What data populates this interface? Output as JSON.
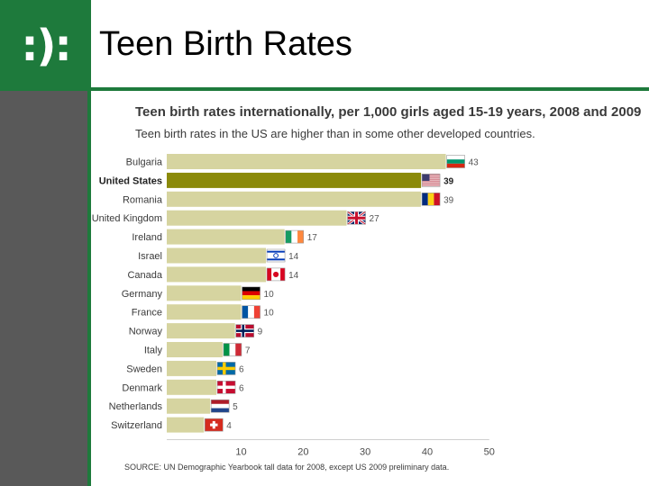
{
  "slide": {
    "logo_text": ":):",
    "title": "Teen Birth Rates"
  },
  "colors": {
    "brand_green": "#1e7a3c",
    "bar": "#d6d4a0",
    "bar_highlight": "#8b8a0a",
    "sidebar": "#595959"
  },
  "chart_data": {
    "type": "bar",
    "orientation": "horizontal",
    "title": "Teen birth rates internationally, per 1,000 girls aged 15-19 years, 2008 and 2009",
    "subtitle": "Teen birth rates in the US are higher than in some other developed countries.",
    "source": "SOURCE: UN Demographic Yearbook tall data for 2008, except US 2009 preliminary data.",
    "categories": [
      "Bulgaria",
      "United States",
      "Romania",
      "United Kingdom",
      "Ireland",
      "Israel",
      "Canada",
      "Germany",
      "France",
      "Norway",
      "Italy",
      "Sweden",
      "Denmark",
      "Netherlands",
      "Switzerland"
    ],
    "values": [
      43,
      39,
      39,
      27,
      17,
      14,
      14,
      10,
      10,
      9,
      7,
      6,
      6,
      5,
      4
    ],
    "value_labels": [
      "43",
      "39",
      "39",
      "27",
      "17",
      "14",
      "14",
      "10",
      "10",
      "9",
      "7",
      "6",
      "6",
      "5",
      "4"
    ],
    "highlight": "United States",
    "flags": [
      "bulgaria-flag-icon",
      "usa-flag-icon",
      "romania-flag-icon",
      "uk-flag-icon",
      "ireland-flag-icon",
      "israel-flag-icon",
      "canada-flag-icon",
      "germany-flag-icon",
      "france-flag-icon",
      "norway-flag-icon",
      "italy-flag-icon",
      "sweden-flag-icon",
      "denmark-flag-icon",
      "netherlands-flag-icon",
      "switzerland-flag-icon"
    ],
    "xticks": [
      "10",
      "20",
      "30",
      "40",
      "50"
    ],
    "xtick_values": [
      10,
      20,
      30,
      40,
      50
    ],
    "xlim": [
      -2,
      50
    ]
  }
}
